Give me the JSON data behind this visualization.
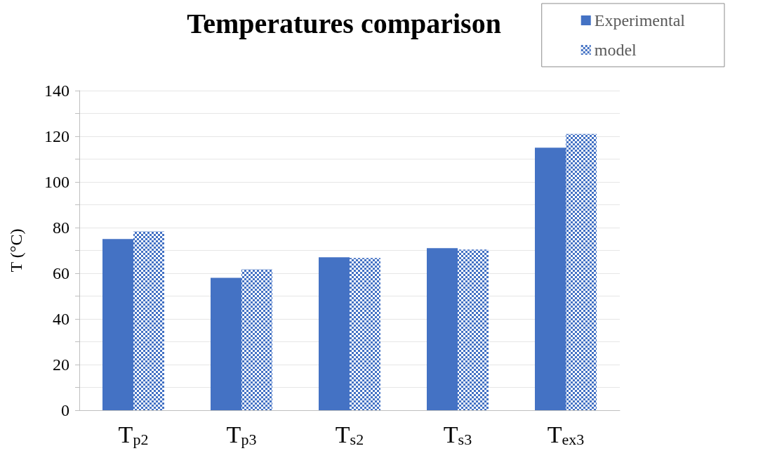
{
  "chart_data": {
    "type": "bar",
    "title": "Temperatures comparison",
    "ylabel": "T (°C)",
    "categories": [
      "T$_{p2}$",
      "T$_{p3}$",
      "T$_{s2}$",
      "T$_{s3}$",
      "T$_{ex3}$"
    ],
    "series": [
      {
        "name": "Experimental",
        "color": "#4472c4",
        "values": [
          75,
          58,
          67,
          71,
          115
        ]
      },
      {
        "name": "model",
        "color": "#4472c4",
        "values": [
          78.3,
          61.7,
          66.7,
          70.4,
          121
        ]
      }
    ],
    "ylim": [
      0,
      140
    ],
    "yticks": [
      0,
      {
        "value": 10,
        "label": null
      },
      20,
      {
        "value": 30,
        "label": null
      },
      40,
      {
        "value": 50,
        "label": null
      },
      60,
      {
        "value": 70,
        "label": null
      },
      80,
      {
        "value": 90,
        "label": null
      },
      100,
      {
        "value": 110,
        "label": null
      },
      120,
      {
        "value": 130,
        "label": null
      },
      140
    ],
    "grid": true,
    "legend": "top right"
  }
}
